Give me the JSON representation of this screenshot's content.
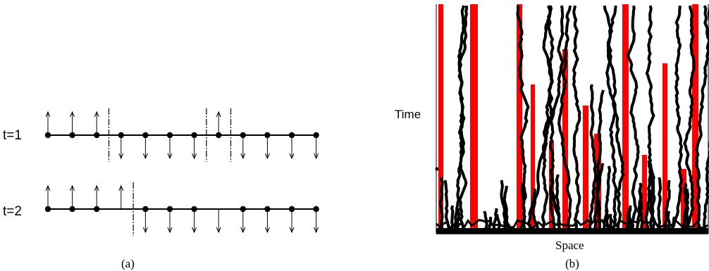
{
  "panel_a": {
    "caption": "(a)",
    "rows": [
      {
        "label": "t=1",
        "sites": [
          {
            "spin": "up",
            "dot": true
          },
          {
            "spin": "up",
            "dot": true
          },
          {
            "spin": "up",
            "dot": true
          },
          {
            "spin": "down",
            "dot": true
          },
          {
            "spin": "down",
            "dot": true
          },
          {
            "spin": "down",
            "dot": true
          },
          {
            "spin": "down",
            "dot": true
          },
          {
            "spin": "up",
            "dot": true
          },
          {
            "spin": "down",
            "dot": true
          },
          {
            "spin": "down",
            "dot": true
          },
          {
            "spin": "down",
            "dot": true
          },
          {
            "spin": "down",
            "dot": true
          }
        ],
        "domain_walls_after_site": [
          3,
          7,
          8
        ]
      },
      {
        "label": "t=2",
        "sites": [
          {
            "spin": "up",
            "dot": true
          },
          {
            "spin": "up",
            "dot": true
          },
          {
            "spin": "up",
            "dot": true
          },
          {
            "spin": "up",
            "dot": false
          },
          {
            "spin": "down",
            "dot": true
          },
          {
            "spin": "down",
            "dot": true
          },
          {
            "spin": "down",
            "dot": true
          },
          {
            "spin": "down",
            "dot": false
          },
          {
            "spin": "down",
            "dot": true
          },
          {
            "spin": "down",
            "dot": true
          },
          {
            "spin": "down",
            "dot": true
          },
          {
            "spin": "down",
            "dot": true
          }
        ],
        "domain_walls_after_site": [
          4
        ]
      }
    ]
  },
  "panel_b": {
    "caption": "(b)",
    "xlabel": "Space",
    "ylabel": "Time",
    "colors": {
      "frozen_domain": "#ff0000",
      "domain_wall_path": "#000000",
      "background": "#ffffff"
    }
  }
}
